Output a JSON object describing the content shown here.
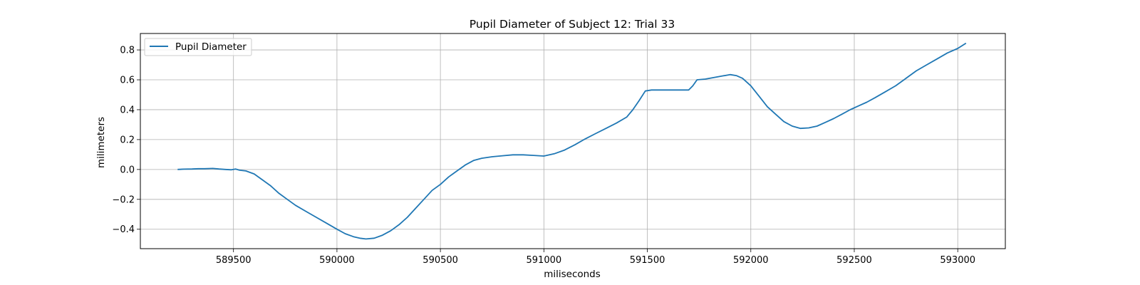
{
  "chart_data": {
    "type": "line",
    "title": "Pupil Diameter of Subject 12: Trial 33",
    "xlabel": "miliseconds",
    "ylabel": "milimeters",
    "xlim": [
      589050,
      593230
    ],
    "ylim": [
      -0.53,
      0.91
    ],
    "xticks": [
      589500,
      590000,
      590500,
      591000,
      591500,
      592000,
      592500,
      593000
    ],
    "yticks": [
      -0.4,
      -0.2,
      0.0,
      0.2,
      0.4,
      0.6,
      0.8
    ],
    "grid": true,
    "legend_position": "upper-left",
    "series": [
      {
        "name": "Pupil Diameter",
        "color": "#1f77b4",
        "points": [
          [
            589230,
            0.0
          ],
          [
            589260,
            0.002
          ],
          [
            589300,
            0.003
          ],
          [
            589330,
            0.005
          ],
          [
            589360,
            0.005
          ],
          [
            589400,
            0.007
          ],
          [
            589430,
            0.003
          ],
          [
            589460,
            0.0
          ],
          [
            589490,
            -0.002
          ],
          [
            589510,
            0.003
          ],
          [
            589530,
            -0.005
          ],
          [
            589560,
            -0.01
          ],
          [
            589600,
            -0.03
          ],
          [
            589640,
            -0.07
          ],
          [
            589680,
            -0.11
          ],
          [
            589720,
            -0.16
          ],
          [
            589760,
            -0.2
          ],
          [
            589800,
            -0.24
          ],
          [
            589850,
            -0.28
          ],
          [
            589900,
            -0.32
          ],
          [
            589950,
            -0.36
          ],
          [
            590000,
            -0.4
          ],
          [
            590040,
            -0.43
          ],
          [
            590080,
            -0.45
          ],
          [
            590110,
            -0.46
          ],
          [
            590140,
            -0.465
          ],
          [
            590180,
            -0.46
          ],
          [
            590220,
            -0.44
          ],
          [
            590260,
            -0.41
          ],
          [
            590300,
            -0.37
          ],
          [
            590340,
            -0.32
          ],
          [
            590380,
            -0.26
          ],
          [
            590420,
            -0.2
          ],
          [
            590460,
            -0.14
          ],
          [
            590500,
            -0.1
          ],
          [
            590540,
            -0.05
          ],
          [
            590580,
            -0.01
          ],
          [
            590620,
            0.03
          ],
          [
            590660,
            0.06
          ],
          [
            590700,
            0.075
          ],
          [
            590750,
            0.085
          ],
          [
            590800,
            0.092
          ],
          [
            590850,
            0.098
          ],
          [
            590900,
            0.098
          ],
          [
            590950,
            0.094
          ],
          [
            591000,
            0.09
          ],
          [
            591050,
            0.105
          ],
          [
            591100,
            0.13
          ],
          [
            591150,
            0.165
          ],
          [
            591200,
            0.205
          ],
          [
            591250,
            0.24
          ],
          [
            591300,
            0.275
          ],
          [
            591350,
            0.31
          ],
          [
            591400,
            0.35
          ],
          [
            591430,
            0.4
          ],
          [
            591460,
            0.46
          ],
          [
            591490,
            0.525
          ],
          [
            591520,
            0.532
          ],
          [
            591600,
            0.532
          ],
          [
            591700,
            0.532
          ],
          [
            591720,
            0.56
          ],
          [
            591740,
            0.6
          ],
          [
            591780,
            0.605
          ],
          [
            591820,
            0.615
          ],
          [
            591860,
            0.625
          ],
          [
            591900,
            0.635
          ],
          [
            591930,
            0.628
          ],
          [
            591960,
            0.61
          ],
          [
            592000,
            0.56
          ],
          [
            592040,
            0.49
          ],
          [
            592080,
            0.42
          ],
          [
            592120,
            0.37
          ],
          [
            592160,
            0.32
          ],
          [
            592200,
            0.29
          ],
          [
            592240,
            0.275
          ],
          [
            592280,
            0.278
          ],
          [
            592320,
            0.29
          ],
          [
            592360,
            0.315
          ],
          [
            592400,
            0.34
          ],
          [
            592440,
            0.37
          ],
          [
            592480,
            0.4
          ],
          [
            592520,
            0.425
          ],
          [
            592560,
            0.45
          ],
          [
            592600,
            0.48
          ],
          [
            592650,
            0.52
          ],
          [
            592700,
            0.56
          ],
          [
            592750,
            0.61
          ],
          [
            592800,
            0.66
          ],
          [
            592850,
            0.7
          ],
          [
            592900,
            0.74
          ],
          [
            592950,
            0.78
          ],
          [
            593000,
            0.81
          ],
          [
            593040,
            0.845
          ]
        ]
      }
    ]
  }
}
